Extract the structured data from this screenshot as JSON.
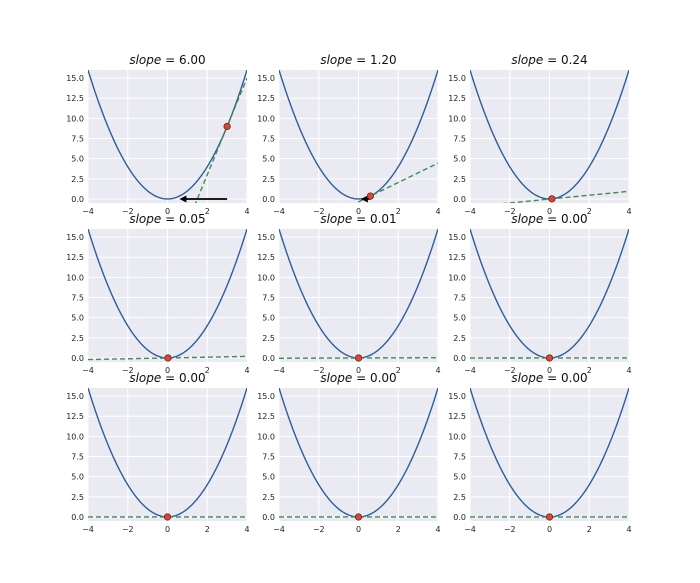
{
  "chart_data": [
    {
      "type": "line",
      "title": "slope = 6.00",
      "title_var": "slope",
      "title_value": "6.00",
      "x": [
        -4,
        4
      ],
      "function": "x^2",
      "series": [
        {
          "values": "y=x^2"
        }
      ],
      "point": {
        "x": 3.0,
        "y": 9.0
      },
      "tangent_slope": 6.0,
      "arrow": {
        "from": 3.0,
        "to": 0.6
      },
      "xlim": [
        -4,
        4
      ],
      "ylim": [
        -0.5,
        16
      ],
      "xticks": [
        -4,
        -2,
        0,
        2,
        4
      ],
      "yticks": [
        "0.0",
        "2.5",
        "5.0",
        "7.5",
        "10.0",
        "12.5",
        "15.0"
      ]
    },
    {
      "type": "line",
      "title": "slope = 1.20",
      "title_var": "slope",
      "title_value": "1.20",
      "x": [
        -4,
        4
      ],
      "function": "x^2",
      "point": {
        "x": 0.6,
        "y": 0.36
      },
      "tangent_slope": 1.2,
      "arrow": {
        "from": 0.6,
        "to": 0.12
      },
      "xlim": [
        -4,
        4
      ],
      "ylim": [
        -0.5,
        16
      ],
      "xticks": [
        -4,
        -2,
        0,
        2,
        4
      ],
      "yticks": [
        "0.0",
        "2.5",
        "5.0",
        "7.5",
        "10.0",
        "12.5",
        "15.0"
      ]
    },
    {
      "type": "line",
      "title": "slope = 0.24",
      "title_var": "slope",
      "title_value": "0.24",
      "x": [
        -4,
        4
      ],
      "function": "x^2",
      "point": {
        "x": 0.12,
        "y": 0.0144
      },
      "tangent_slope": 0.24,
      "xlim": [
        -4,
        4
      ],
      "ylim": [
        -0.5,
        16
      ],
      "xticks": [
        -4,
        -2,
        0,
        2,
        4
      ],
      "yticks": [
        "0.0",
        "2.5",
        "5.0",
        "7.5",
        "10.0",
        "12.5",
        "15.0"
      ]
    },
    {
      "type": "line",
      "title": "slope = 0.05",
      "title_var": "slope",
      "title_value": "0.05",
      "x": [
        -4,
        4
      ],
      "function": "x^2",
      "point": {
        "x": 0.024,
        "y": 0.000576
      },
      "tangent_slope": 0.048,
      "xlim": [
        -4,
        4
      ],
      "ylim": [
        -0.5,
        16
      ],
      "xticks": [
        -4,
        -2,
        0,
        2,
        4
      ],
      "yticks": [
        "0.0",
        "2.5",
        "5.0",
        "7.5",
        "10.0",
        "12.5",
        "15.0"
      ]
    },
    {
      "type": "line",
      "title": "slope = 0.01",
      "title_var": "slope",
      "title_value": "0.01",
      "x": [
        -4,
        4
      ],
      "function": "x^2",
      "point": {
        "x": 0.0048,
        "y": 2.3e-05
      },
      "tangent_slope": 0.0096,
      "xlim": [
        -4,
        4
      ],
      "ylim": [
        -0.5,
        16
      ],
      "xticks": [
        -4,
        -2,
        0,
        2,
        4
      ],
      "yticks": [
        "0.0",
        "2.5",
        "5.0",
        "7.5",
        "10.0",
        "12.5",
        "15.0"
      ]
    },
    {
      "type": "line",
      "title": "slope = 0.00",
      "title_var": "slope",
      "title_value": "0.00",
      "x": [
        -4,
        4
      ],
      "function": "x^2",
      "point": {
        "x": 0.00096,
        "y": 0.0
      },
      "tangent_slope": 0.0019,
      "xlim": [
        -4,
        4
      ],
      "ylim": [
        -0.5,
        16
      ],
      "xticks": [
        -4,
        -2,
        0,
        2,
        4
      ],
      "yticks": [
        "0.0",
        "2.5",
        "5.0",
        "7.5",
        "10.0",
        "12.5",
        "15.0"
      ]
    },
    {
      "type": "line",
      "title": "slope = 0.00",
      "title_var": "slope",
      "title_value": "0.00",
      "x": [
        -4,
        4
      ],
      "function": "x^2",
      "point": {
        "x": 0.0002,
        "y": 0.0
      },
      "tangent_slope": 0.0004,
      "xlim": [
        -4,
        4
      ],
      "ylim": [
        -0.5,
        16
      ],
      "xticks": [
        -4,
        -2,
        0,
        2,
        4
      ],
      "yticks": [
        "0.0",
        "2.5",
        "5.0",
        "7.5",
        "10.0",
        "12.5",
        "15.0"
      ]
    },
    {
      "type": "line",
      "title": "slope = 0.00",
      "title_var": "slope",
      "title_value": "0.00",
      "x": [
        -4,
        4
      ],
      "function": "x^2",
      "point": {
        "x": 4e-05,
        "y": 0.0
      },
      "tangent_slope": 8e-05,
      "xlim": [
        -4,
        4
      ],
      "ylim": [
        -0.5,
        16
      ],
      "xticks": [
        -4,
        -2,
        0,
        2,
        4
      ],
      "yticks": [
        "0.0",
        "2.5",
        "5.0",
        "7.5",
        "10.0",
        "12.5",
        "15.0"
      ]
    },
    {
      "type": "line",
      "title": "slope = 0.00",
      "title_var": "slope",
      "title_value": "0.00",
      "x": [
        -4,
        4
      ],
      "function": "x^2",
      "point": {
        "x": 8e-06,
        "y": 0.0
      },
      "tangent_slope": 1.6e-05,
      "xlim": [
        -4,
        4
      ],
      "ylim": [
        -0.5,
        16
      ],
      "xticks": [
        -4,
        -2,
        0,
        2,
        4
      ],
      "yticks": [
        "0.0",
        "2.5",
        "5.0",
        "7.5",
        "10.0",
        "12.5",
        "15.0"
      ]
    }
  ],
  "colors": {
    "curve": "#2f5d9a",
    "tangent": "#3b8f4f",
    "point": "#d9463b",
    "background": "#eaeaf2"
  }
}
